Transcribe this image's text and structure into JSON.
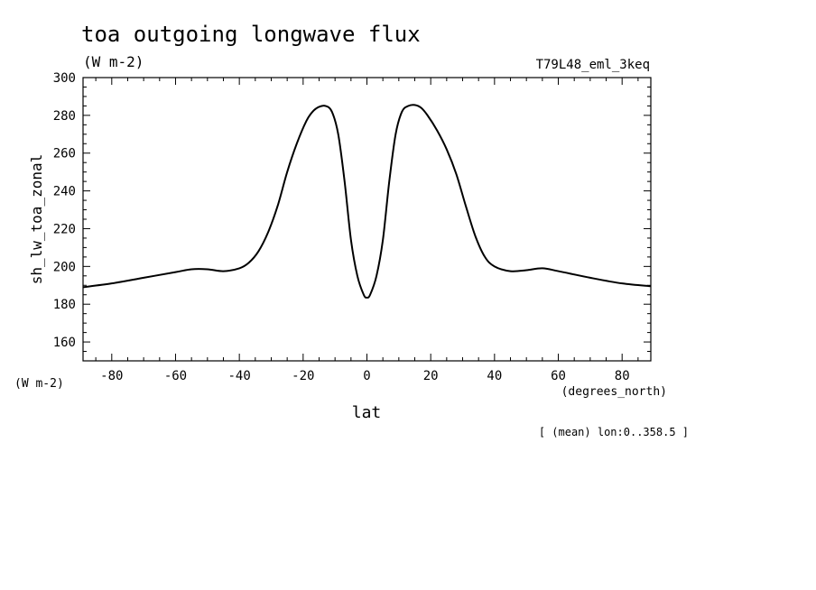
{
  "chart_data": {
    "type": "line",
    "title": "toa outgoing longwave flux",
    "subtitle": "(W m-2)",
    "experiment_label": "T79L48_eml_3keq",
    "ylabel": "sh_lw_toa_zonal",
    "y_units_label": "(W m-2)",
    "xlabel": "lat",
    "x_units_label": "(degrees_north)",
    "footnote": "[ (mean) lon:0..358.5 ]",
    "xlim": [
      -89,
      89
    ],
    "ylim": [
      150,
      300
    ],
    "x_ticks": [
      -80,
      -60,
      -40,
      -20,
      0,
      20,
      40,
      60,
      80
    ],
    "x_tick_labels": [
      "-80",
      "-60",
      "-40",
      "-20",
      "0",
      "20",
      "40",
      "60",
      "80"
    ],
    "y_ticks": [
      160,
      180,
      200,
      220,
      240,
      260,
      280,
      300
    ],
    "y_tick_labels": [
      "160",
      "180",
      "200",
      "220",
      "240",
      "260",
      "280",
      "300"
    ],
    "grid": false,
    "series": [
      {
        "color": "#000000",
        "x": [
          -89,
          -80,
          -70,
          -60,
          -55,
          -50,
          -45,
          -40,
          -37,
          -34,
          -31,
          -28,
          -25,
          -22,
          -19,
          -17,
          -15,
          -13,
          -11,
          -9,
          -7,
          -5,
          -3,
          -1,
          0,
          1,
          3,
          5,
          7,
          9,
          11,
          13,
          15,
          17,
          19,
          22,
          25,
          28,
          31,
          34,
          37,
          40,
          45,
          50,
          55,
          60,
          70,
          80,
          89
        ],
        "y": [
          189,
          191,
          194,
          197,
          198.5,
          198.5,
          197.5,
          199,
          202,
          208,
          218,
          232,
          250,
          265,
          277,
          282,
          284.5,
          285,
          282,
          270,
          245,
          214,
          195,
          185,
          183.5,
          185,
          195,
          214,
          245,
          270,
          282,
          285,
          285.5,
          284,
          280,
          272,
          262,
          249,
          232,
          216,
          205,
          200,
          197.5,
          198,
          199,
          197.5,
          194,
          191,
          189.5
        ]
      }
    ]
  }
}
